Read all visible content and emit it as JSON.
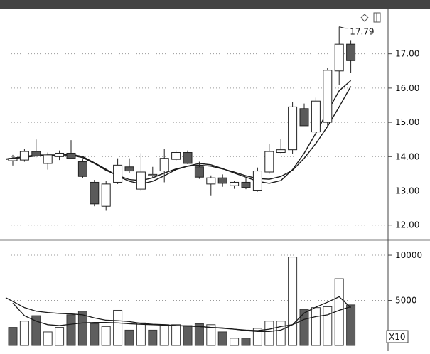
{
  "chart_data": [
    {
      "type": "candlestick",
      "title": "",
      "xlabel": "",
      "ylabel": "",
      "ylim": [
        11.6,
        18.3
      ],
      "yticks": [
        "12.00",
        "13.00",
        "14.00",
        "15.00",
        "16.00",
        "17.00"
      ],
      "yticks_values": [
        12,
        13,
        14,
        15,
        16,
        17
      ],
      "grid": "horizontal-dotted",
      "annotation": {
        "label": "17.79",
        "value": 17.79
      },
      "candles": [
        {
          "open": 13.88,
          "high": 14.05,
          "low": 13.74,
          "close": 13.95
        },
        {
          "open": 13.9,
          "high": 14.22,
          "low": 13.85,
          "close": 14.15
        },
        {
          "open": 14.15,
          "high": 14.5,
          "low": 13.98,
          "close": 14.02
        },
        {
          "open": 13.8,
          "high": 14.12,
          "low": 13.62,
          "close": 14.05
        },
        {
          "open": 14.0,
          "high": 14.18,
          "low": 13.9,
          "close": 14.1
        },
        {
          "open": 14.1,
          "high": 14.48,
          "low": 13.95,
          "close": 13.95
        },
        {
          "open": 13.85,
          "high": 13.92,
          "low": 13.38,
          "close": 13.42
        },
        {
          "open": 13.25,
          "high": 13.32,
          "low": 12.55,
          "close": 12.62
        },
        {
          "open": 12.55,
          "high": 13.28,
          "low": 12.42,
          "close": 13.2
        },
        {
          "open": 13.25,
          "high": 13.95,
          "low": 13.2,
          "close": 13.75
        },
        {
          "open": 13.7,
          "high": 13.95,
          "low": 13.52,
          "close": 13.58
        },
        {
          "open": 13.05,
          "high": 14.1,
          "low": 13.0,
          "close": 13.55
        },
        {
          "open": 13.45,
          "high": 13.7,
          "low": 13.38,
          "close": 13.48
        },
        {
          "open": 13.58,
          "high": 14.22,
          "low": 13.25,
          "close": 13.95
        },
        {
          "open": 13.92,
          "high": 14.18,
          "low": 13.88,
          "close": 14.12
        },
        {
          "open": 14.12,
          "high": 14.18,
          "low": 13.78,
          "close": 13.8
        },
        {
          "open": 13.7,
          "high": 13.85,
          "low": 13.35,
          "close": 13.4
        },
        {
          "open": 13.2,
          "high": 13.45,
          "low": 12.85,
          "close": 13.38
        },
        {
          "open": 13.38,
          "high": 13.48,
          "low": 13.12,
          "close": 13.22
        },
        {
          "open": 13.15,
          "high": 13.3,
          "low": 13.06,
          "close": 13.25
        },
        {
          "open": 13.25,
          "high": 13.36,
          "low": 13.05,
          "close": 13.1
        },
        {
          "open": 13.02,
          "high": 13.68,
          "low": 12.98,
          "close": 13.58
        },
        {
          "open": 13.55,
          "high": 14.38,
          "low": 13.5,
          "close": 14.15
        },
        {
          "open": 14.12,
          "high": 14.52,
          "low": 14.1,
          "close": 14.2
        },
        {
          "open": 14.2,
          "high": 15.6,
          "low": 14.08,
          "close": 15.45
        },
        {
          "open": 15.4,
          "high": 15.55,
          "low": 14.9,
          "close": 14.9
        },
        {
          "open": 14.72,
          "high": 15.72,
          "low": 14.65,
          "close": 15.62
        },
        {
          "open": 15.0,
          "high": 16.58,
          "low": 14.85,
          "close": 16.52
        },
        {
          "open": 16.5,
          "high": 17.79,
          "low": 16.08,
          "close": 17.28
        },
        {
          "open": 17.28,
          "high": 17.4,
          "low": 16.45,
          "close": 16.8
        }
      ],
      "series": [
        {
          "type": "line",
          "values": [
            13.92,
            13.98,
            14.02,
            14.05,
            14.05,
            14.04,
            13.97,
            13.8,
            13.6,
            13.45,
            13.33,
            13.3,
            13.38,
            13.52,
            13.64,
            13.72,
            13.75,
            13.72,
            13.64,
            13.55,
            13.44,
            13.36,
            13.34,
            13.42,
            13.6,
            13.95,
            14.38,
            14.88,
            15.45,
            16.05
          ]
        },
        {
          "type": "line",
          "values": [
            13.93,
            14.0,
            14.05,
            14.04,
            14.04,
            14.07,
            14.0,
            13.82,
            13.63,
            13.43,
            13.28,
            13.2,
            13.28,
            13.44,
            13.62,
            13.72,
            13.8,
            13.76,
            13.65,
            13.52,
            13.4,
            13.28,
            13.22,
            13.3,
            13.62,
            14.1,
            14.68,
            15.32,
            15.92,
            16.22
          ]
        }
      ]
    },
    {
      "type": "bar",
      "title": "",
      "xlabel": "",
      "ylabel": "",
      "ylim": [
        0,
        11500
      ],
      "yticks": [
        "5000",
        "10000"
      ],
      "yticks_values": [
        5000,
        10000
      ],
      "unit_label": "X10",
      "grid": "horizontal-dotted",
      "bars": [
        {
          "value": 2000,
          "filled": true
        },
        {
          "value": 2700,
          "filled": false
        },
        {
          "value": 3300,
          "filled": true
        },
        {
          "value": 1500,
          "filled": false
        },
        {
          "value": 2000,
          "filled": false
        },
        {
          "value": 3400,
          "filled": true
        },
        {
          "value": 3800,
          "filled": true
        },
        {
          "value": 2400,
          "filled": true
        },
        {
          "value": 2100,
          "filled": false
        },
        {
          "value": 3900,
          "filled": false
        },
        {
          "value": 1700,
          "filled": true
        },
        {
          "value": 2500,
          "filled": false
        },
        {
          "value": 1700,
          "filled": true
        },
        {
          "value": 2300,
          "filled": false
        },
        {
          "value": 2300,
          "filled": false
        },
        {
          "value": 2200,
          "filled": true
        },
        {
          "value": 2400,
          "filled": true
        },
        {
          "value": 2300,
          "filled": false
        },
        {
          "value": 1500,
          "filled": true
        },
        {
          "value": 800,
          "filled": false
        },
        {
          "value": 800,
          "filled": true
        },
        {
          "value": 1900,
          "filled": false
        },
        {
          "value": 2700,
          "filled": false
        },
        {
          "value": 2700,
          "filled": false
        },
        {
          "value": 9800,
          "filled": false
        },
        {
          "value": 4000,
          "filled": true
        },
        {
          "value": 4200,
          "filled": false
        },
        {
          "value": 4300,
          "filled": false
        },
        {
          "value": 7400,
          "filled": false
        },
        {
          "value": 4500,
          "filled": true
        }
      ],
      "series": [
        {
          "type": "line",
          "values": [
            5300,
            4200,
            3800,
            3650,
            3550,
            3500,
            3400,
            3050,
            2800,
            2750,
            2650,
            2450,
            2350,
            2300,
            2200,
            2150,
            2100,
            2000,
            1900,
            1800,
            1700,
            1650,
            1800,
            2100,
            2300,
            3600,
            4250,
            4800,
            5400,
            4200
          ]
        },
        {
          "type": "line",
          "values": [
            4700,
            3300,
            2700,
            2300,
            2200,
            2350,
            2500,
            2550,
            2550,
            2500,
            2400,
            2350,
            2300,
            2250,
            2200,
            2150,
            2100,
            2000,
            1950,
            1800,
            1650,
            1550,
            1550,
            1700,
            2300,
            2900,
            3200,
            3400,
            3900,
            4300
          ]
        }
      ]
    }
  ]
}
